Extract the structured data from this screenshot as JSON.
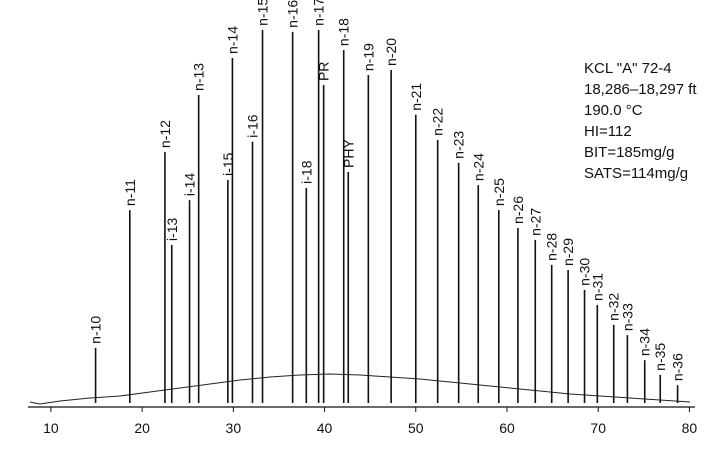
{
  "chart_data": {
    "type": "chromatogram",
    "categories": [
      "n-10",
      "n-11",
      "n-12",
      "i-13",
      "n-13",
      "i-14",
      "i-15",
      "n-14",
      "i-16",
      "n-15",
      "n-16",
      "i-18",
      "n-17",
      "PR",
      "n-18",
      "PHY",
      "n-19",
      "n-20",
      "n-21",
      "n-22",
      "n-23",
      "n-24",
      "n-25",
      "n-26",
      "n-27",
      "n-28",
      "n-29",
      "n-30",
      "n-31",
      "n-32",
      "n-33",
      "n-34",
      "n-35",
      "n-36"
    ],
    "x": [
      14.9,
      18.65,
      22.5,
      23.25,
      26.2,
      25.2,
      29.4,
      29.9,
      32.1,
      33.2,
      36.5,
      38.0,
      39.35,
      39.9,
      42.1,
      42.6,
      44.8,
      47.3,
      50.0,
      52.4,
      54.7,
      56.85,
      59.1,
      61.2,
      63.1,
      64.9,
      66.7,
      68.5,
      69.9,
      71.7,
      73.2,
      75.1,
      76.8,
      78.7
    ],
    "values": [
      14.9,
      49.6,
      64.2,
      40.8,
      78.6,
      52.1,
      57.2,
      87.9,
      66.8,
      95.0,
      94.5,
      55.2,
      95.0,
      81.1,
      89.9,
      59.2,
      83.6,
      84.9,
      73.6,
      67.3,
      61.5,
      55.9,
      49.6,
      45.1,
      42.1,
      35.8,
      34.5,
      29.5,
      25.7,
      20.7,
      18.1,
      11.8,
      8.1,
      5.5
    ],
    "color": "#111111",
    "xlim": [
      7.6,
      80.5
    ],
    "xticks": [
      10,
      20,
      30,
      40,
      50,
      60,
      70,
      80
    ],
    "ylim": [
      0,
      100
    ],
    "annotations": [
      "KCL \"A\" 72-4",
      "18,286–18,297 ft",
      "190.0 °C",
      "HI=112",
      "BIT=185mg/g",
      "SATS=114mg/g"
    ]
  }
}
